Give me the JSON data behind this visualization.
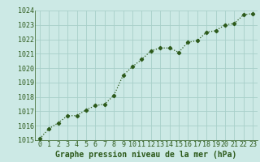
{
  "x": [
    0,
    1,
    2,
    3,
    4,
    5,
    6,
    7,
    8,
    9,
    10,
    11,
    12,
    13,
    14,
    15,
    16,
    17,
    18,
    19,
    20,
    21,
    22,
    23
  ],
  "y": [
    1015.1,
    1015.8,
    1016.2,
    1016.7,
    1016.7,
    1017.1,
    1017.4,
    1017.5,
    1018.1,
    1019.5,
    1020.1,
    1020.6,
    1021.2,
    1021.4,
    1021.4,
    1021.1,
    1021.8,
    1021.9,
    1022.5,
    1022.6,
    1023.0,
    1023.1,
    1023.7,
    1023.8
  ],
  "ylim": [
    1015,
    1024
  ],
  "yticks": [
    1015,
    1016,
    1017,
    1018,
    1019,
    1020,
    1021,
    1022,
    1023,
    1024
  ],
  "xticks": [
    0,
    1,
    2,
    3,
    4,
    5,
    6,
    7,
    8,
    9,
    10,
    11,
    12,
    13,
    14,
    15,
    16,
    17,
    18,
    19,
    20,
    21,
    22,
    23
  ],
  "xlabel": "Graphe pression niveau de la mer (hPa)",
  "line_color": "#2d5a1b",
  "marker": "D",
  "marker_size": 2.2,
  "bg_color": "#cce9e5",
  "grid_color": "#a8cfc9",
  "tick_label_color": "#2d5a1b",
  "xlabel_color": "#2d5a1b",
  "xlabel_fontsize": 7,
  "tick_fontsize": 6,
  "line_width": 0.9,
  "line_style": ":"
}
